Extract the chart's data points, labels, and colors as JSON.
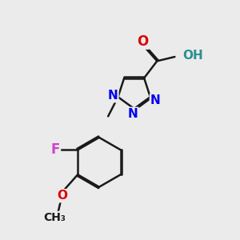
{
  "bg_color": "#ebebeb",
  "bond_color": "#1a1a1a",
  "bond_width": 1.8,
  "dbo": 0.055,
  "atom_colors": {
    "O": "#dd0000",
    "N": "#0000ee",
    "F": "#cc44cc",
    "C": "#1a1a1a",
    "H": "#2a9090"
  },
  "fs": 11
}
